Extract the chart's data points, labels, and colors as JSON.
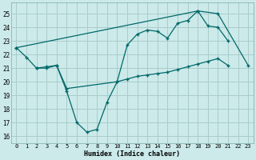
{
  "xlabel": "Humidex (Indice chaleur)",
  "bg_color": "#cceaea",
  "grid_color": "#aacccc",
  "line_color": "#006868",
  "ylim": [
    15.5,
    25.8
  ],
  "xlim": [
    -0.5,
    23.5
  ],
  "yticks": [
    16,
    17,
    18,
    19,
    20,
    21,
    22,
    23,
    24,
    25
  ],
  "xticks": [
    0,
    1,
    2,
    3,
    4,
    5,
    6,
    7,
    8,
    9,
    10,
    11,
    12,
    13,
    14,
    15,
    16,
    17,
    18,
    19,
    20,
    21,
    22,
    23
  ],
  "line1_x": [
    0,
    1,
    2,
    3,
    4,
    5,
    6,
    7,
    8,
    9,
    10,
    11,
    12,
    13,
    14,
    15,
    16,
    17,
    18,
    19,
    20,
    21
  ],
  "line1_y": [
    22.5,
    21.8,
    21.0,
    21.0,
    21.2,
    19.3,
    17.0,
    16.3,
    16.5,
    18.5,
    20.0,
    22.7,
    23.5,
    23.8,
    23.7,
    23.2,
    24.3,
    24.5,
    25.2,
    24.1,
    24.0,
    23.0
  ],
  "line2_x": [
    0,
    18,
    20,
    23
  ],
  "line2_y": [
    22.5,
    25.2,
    25.0,
    21.2
  ],
  "line3_x": [
    2,
    3,
    4,
    5,
    10,
    11,
    12,
    13,
    14,
    15,
    16,
    17,
    18,
    19,
    20,
    21
  ],
  "line3_y": [
    21.0,
    21.1,
    21.2,
    19.5,
    20.0,
    20.2,
    20.4,
    20.5,
    20.6,
    20.7,
    20.9,
    21.1,
    21.3,
    21.5,
    21.7,
    21.2
  ]
}
